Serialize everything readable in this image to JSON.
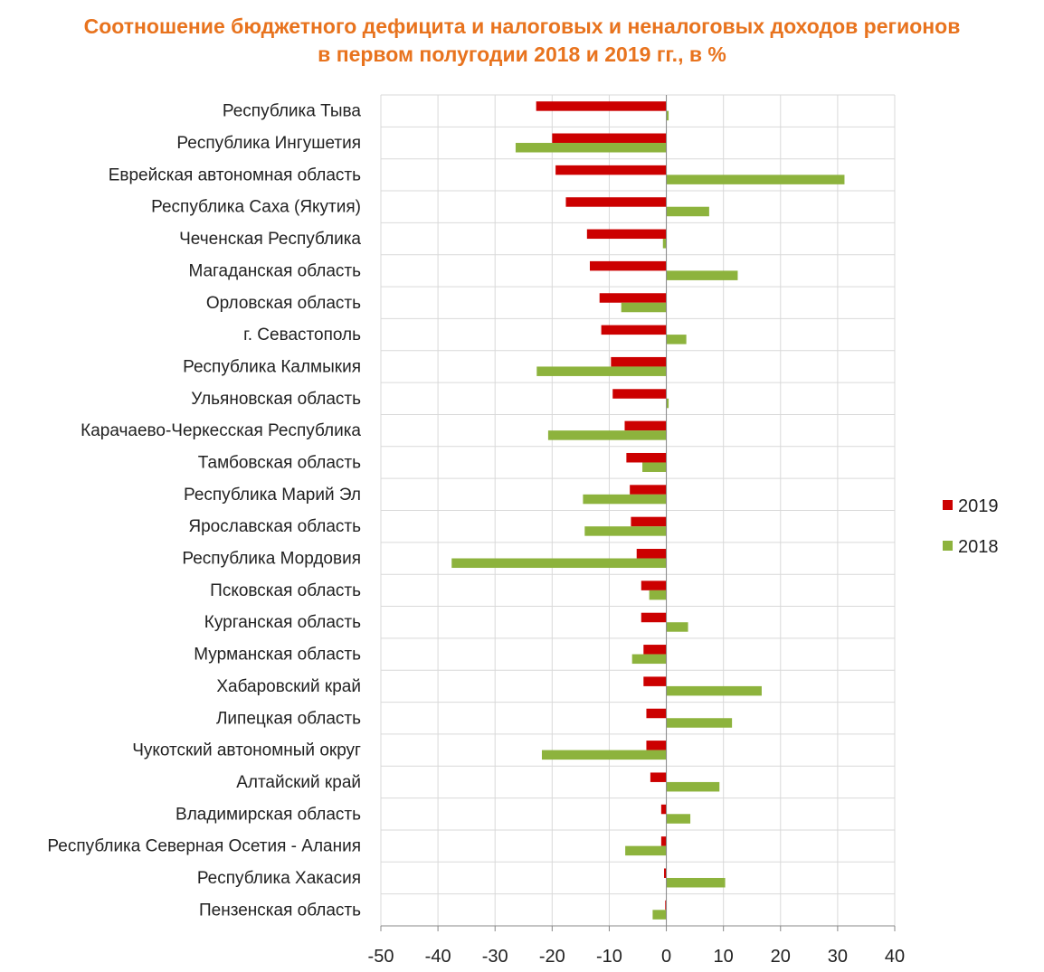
{
  "chart_data": {
    "type": "bar",
    "orientation": "horizontal",
    "title": "Соотношение бюджетного дефицита и налоговых и неналоговых доходов регионов",
    "subtitle": "в первом полугодии 2018 и 2019 гг., в %",
    "xlabel": "",
    "ylabel": "",
    "xlim": [
      -50,
      40
    ],
    "xticks": [
      -50,
      -40,
      -30,
      -20,
      -10,
      0,
      10,
      20,
      30,
      40
    ],
    "grid": true,
    "legend_position": "right",
    "categories": [
      "Республика Тыва",
      "Республика Ингушетия",
      "Еврейская автономная область",
      "Республика Саха (Якутия)",
      "Чеченская Республика",
      "Магаданская область",
      "Орловская область",
      "г. Севастополь",
      "Республика Калмыкия",
      "Ульяновская область",
      "Карачаево-Черкесская Республика",
      "Тамбовская область",
      "Республика Марий Эл",
      "Ярославская область",
      "Республика Мордовия",
      "Псковская область",
      "Курганская область",
      "Мурманская область",
      "Хабаровский край",
      "Липецкая область",
      "Чукотский автономный округ",
      "Алтайский край",
      "Владимирская область",
      "Республика Северная Осетия - Алания",
      "Республика Хакасия",
      "Пензенская область"
    ],
    "series": [
      {
        "name": "2019",
        "color": "#cc0000",
        "values": [
          -22.8,
          -20.0,
          -19.4,
          -17.6,
          -13.9,
          -13.4,
          -11.7,
          -11.4,
          -9.7,
          -9.4,
          -7.3,
          -7.0,
          -6.4,
          -6.2,
          -5.2,
          -4.4,
          -4.4,
          -4.0,
          -4.0,
          -3.5,
          -3.5,
          -2.8,
          -0.9,
          -0.9,
          -0.4,
          -0.2
        ]
      },
      {
        "name": "2018",
        "color": "#8db33d",
        "values": [
          0.4,
          -26.4,
          31.2,
          7.5,
          -0.6,
          12.5,
          -7.9,
          3.5,
          -22.7,
          0.4,
          -20.7,
          -4.2,
          -14.6,
          -14.3,
          -37.6,
          -3.0,
          3.8,
          -6.0,
          16.7,
          11.5,
          -21.8,
          9.3,
          4.2,
          -7.2,
          10.3,
          -2.4
        ]
      }
    ]
  }
}
